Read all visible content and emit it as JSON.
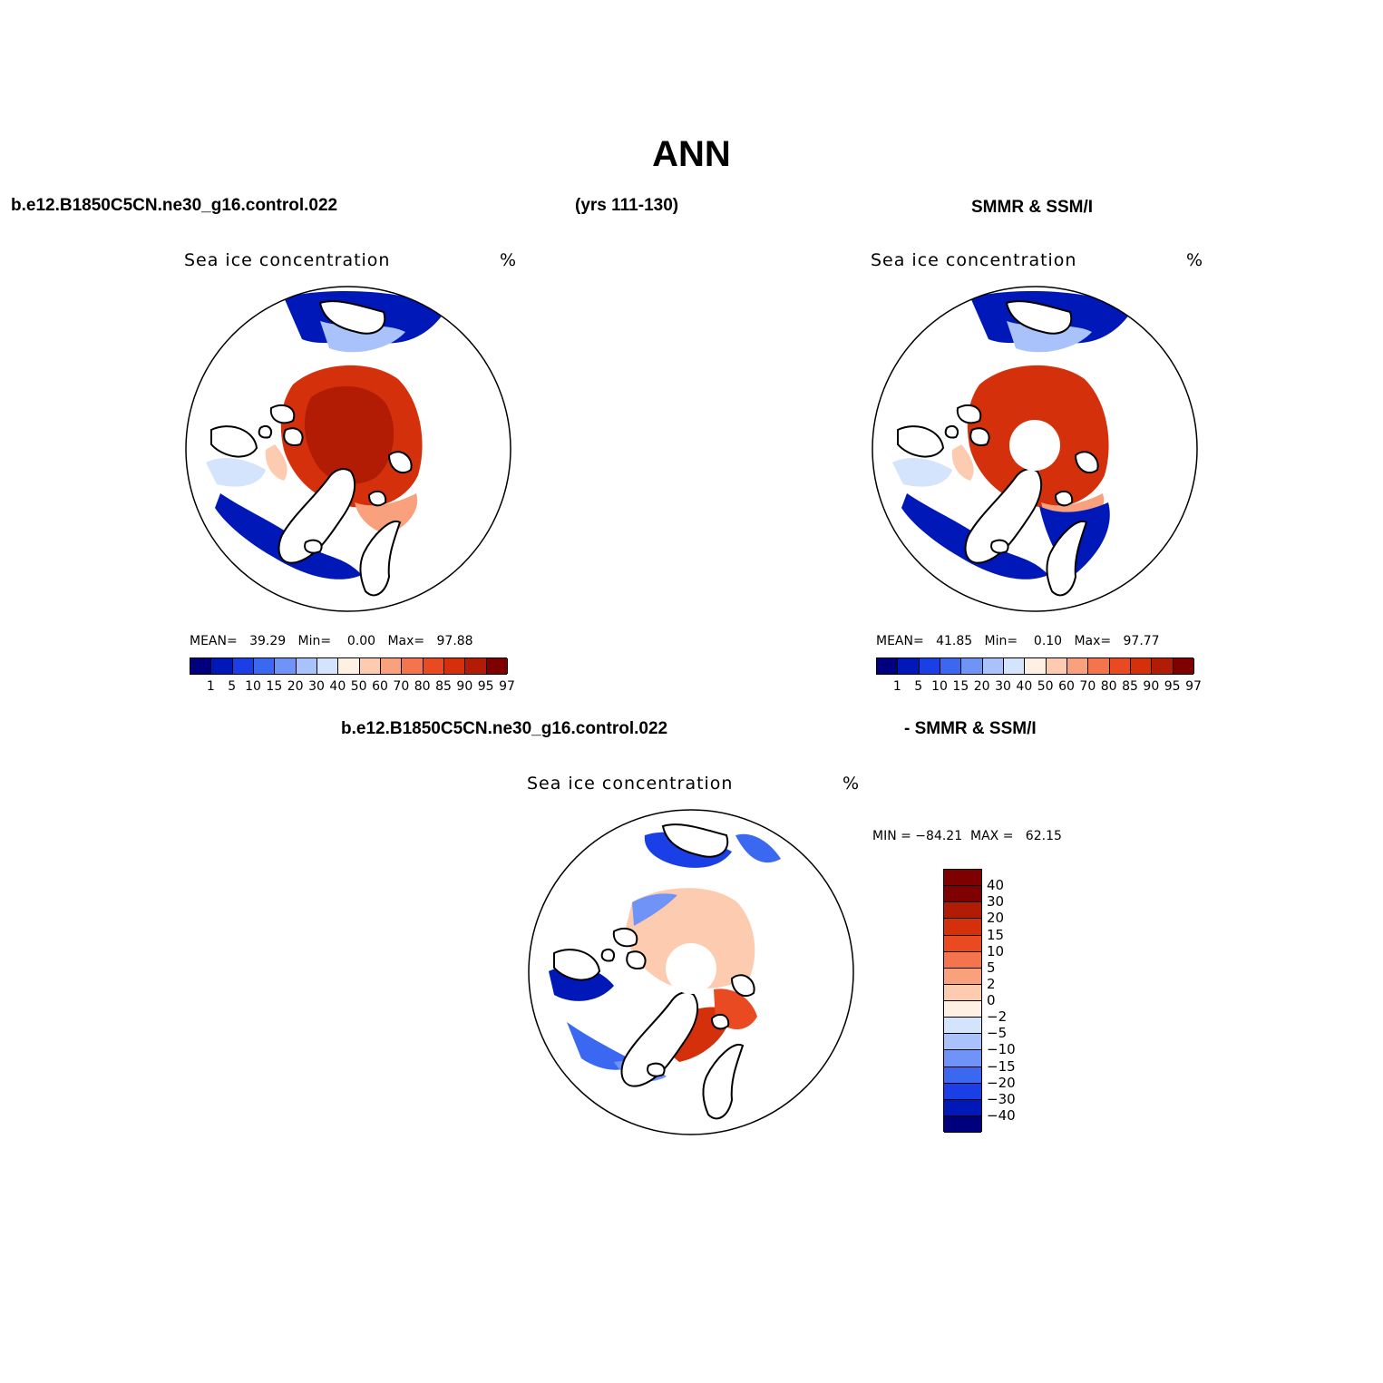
{
  "figure": {
    "title": "ANN",
    "case_name": "b.e12.B1850C5CN.ne30_g16.control.022",
    "years": "(yrs 111-130)",
    "obs_name": "SMMR & SSM/I",
    "diff_left": "b.e12.B1850C5CN.ne30_g16.control.022",
    "diff_right": "- SMMR & SSM/I"
  },
  "panels": [
    {
      "id": "model",
      "title": "Sea ice concentration",
      "units": "%",
      "mean_label": "MEAN=",
      "mean": "39.29",
      "min_label": "Min=",
      "min": "0.00",
      "max_label": "Max=",
      "max": "97.88",
      "pole_hole": false
    },
    {
      "id": "obs",
      "title": "Sea ice concentration",
      "units": "%",
      "mean_label": "MEAN=",
      "mean": "41.85",
      "min_label": "Min=",
      "min": "0.10",
      "max_label": "Max=",
      "max": "97.77",
      "pole_hole": true
    },
    {
      "id": "diff",
      "title": "Sea ice concentration",
      "units": "%",
      "minmax_text": "MIN = −84.21  MAX =   62.15",
      "pole_hole": true
    }
  ],
  "colorbar_abs": {
    "ticks": [
      "1",
      "5",
      "10",
      "15",
      "20",
      "30",
      "40",
      "50",
      "60",
      "70",
      "80",
      "85",
      "90",
      "95",
      "97"
    ],
    "colors": [
      "#00007f",
      "#0018b8",
      "#1a3fe6",
      "#3a68f0",
      "#6f93f6",
      "#a9c2fb",
      "#d4e4fd",
      "#fff0e4",
      "#fdcbb0",
      "#f9a07c",
      "#f4744e",
      "#e94a22",
      "#d4300c",
      "#b21c04",
      "#7f0000"
    ]
  },
  "colorbar_diff": {
    "ticks": [
      "40",
      "30",
      "20",
      "15",
      "10",
      "5",
      "2",
      "0",
      "−2",
      "−5",
      "−10",
      "−15",
      "−20",
      "−30",
      "−40"
    ],
    "colors": [
      "#7f0000",
      "#b21c04",
      "#d4300c",
      "#e94a22",
      "#f4744e",
      "#f9a07c",
      "#fdcbb0",
      "#fff0e4",
      "#d4e4fd",
      "#a9c2fb",
      "#6f93f6",
      "#3a68f0",
      "#1a3fe6",
      "#0018b8",
      "#00007f"
    ]
  }
}
